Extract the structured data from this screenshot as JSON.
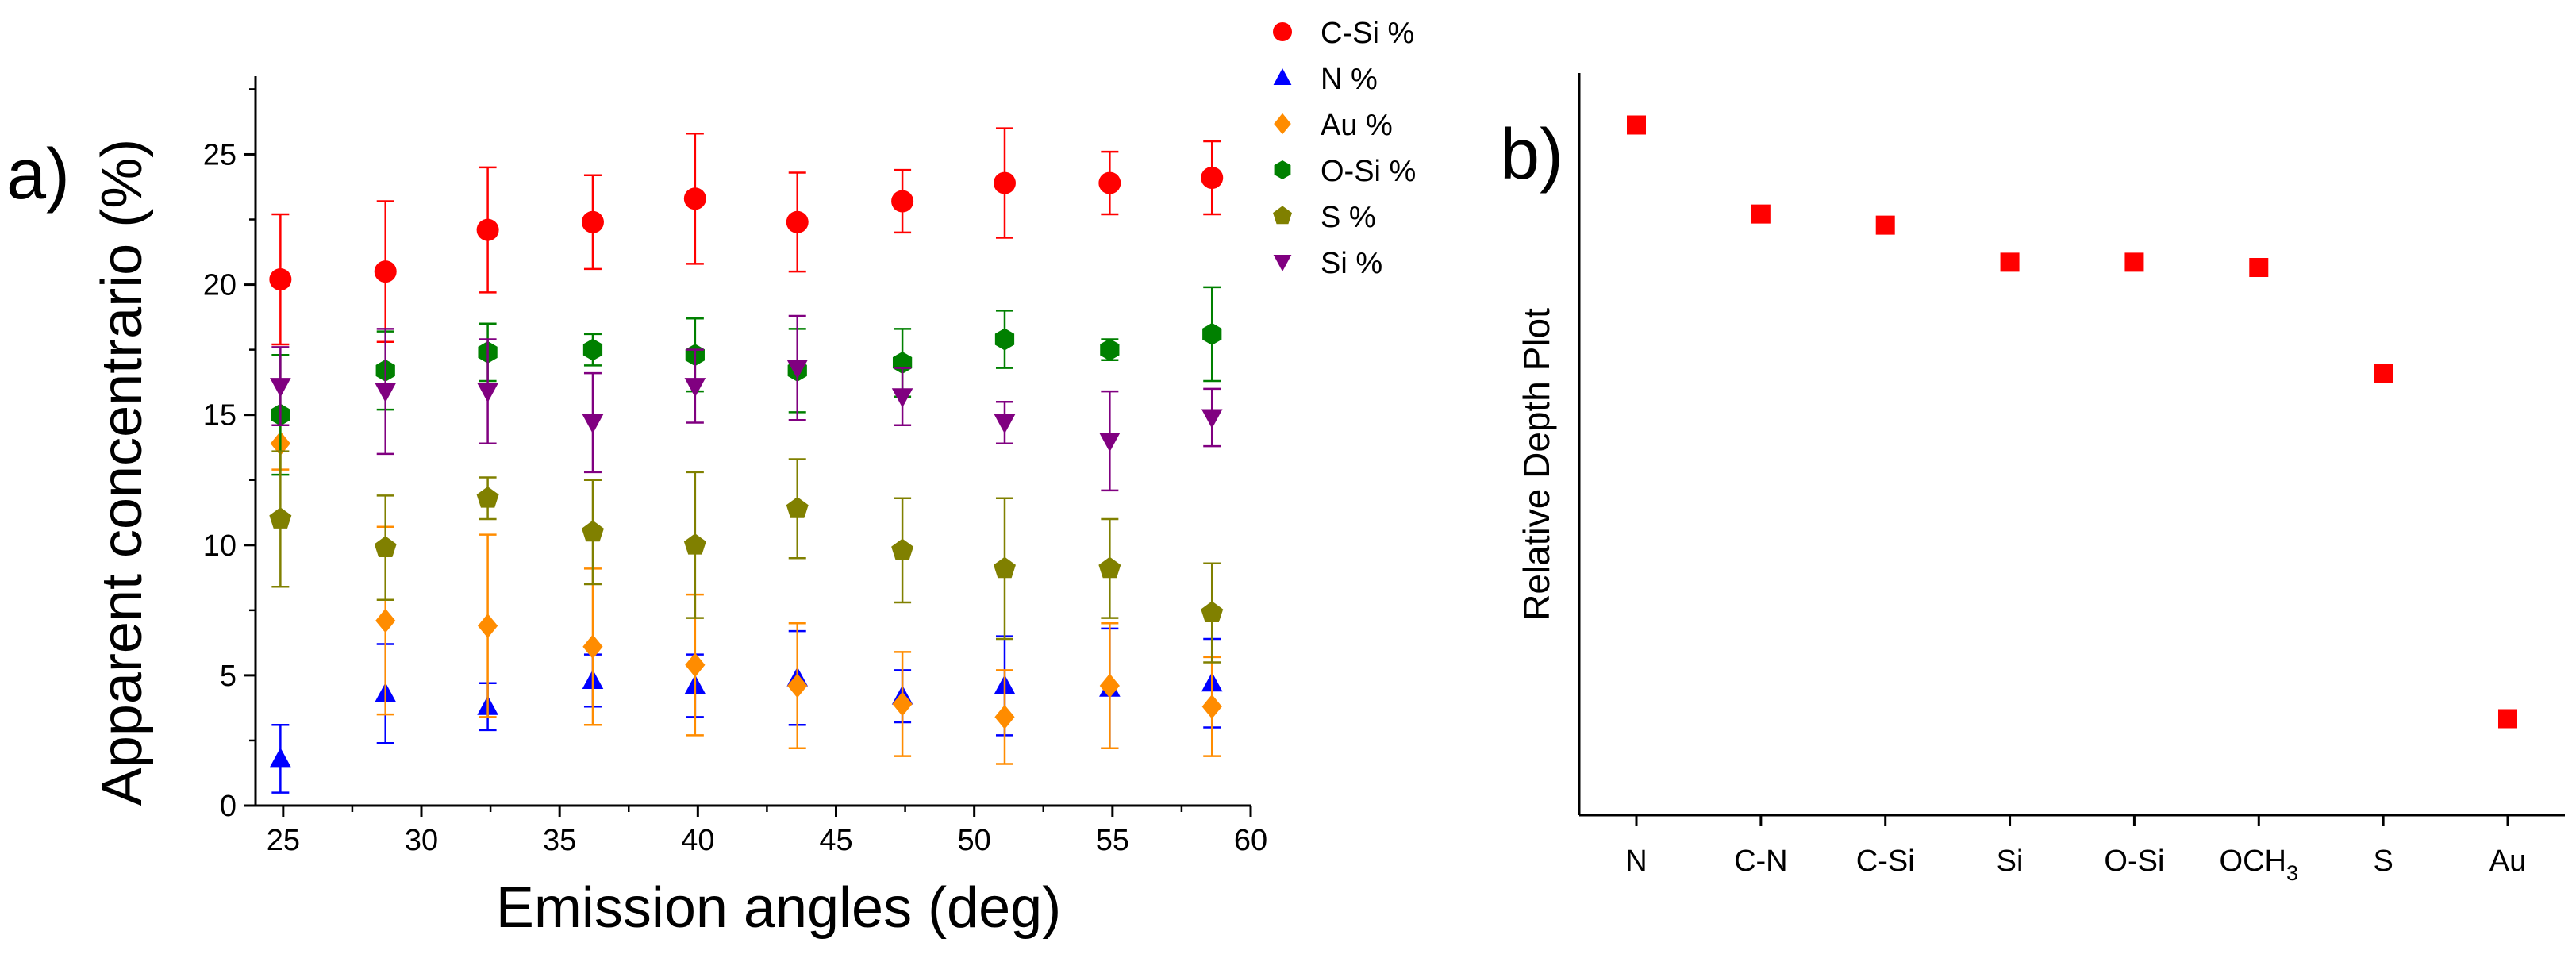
{
  "panels": {
    "a_label": "a)",
    "b_label": "b)"
  },
  "chart_data": [
    {
      "type": "scatter",
      "panel": "a",
      "xlabel": "Emission angles (deg)",
      "ylabel": "Apparent concentrario (%)",
      "xlim": [
        24,
        60
      ],
      "ylim": [
        0,
        28
      ],
      "xticks": [
        25,
        30,
        35,
        40,
        45,
        50,
        55,
        60
      ],
      "yticks": [
        0,
        5,
        10,
        15,
        20,
        25
      ],
      "grid": false,
      "legend_position": "top-right outside",
      "x": [
        24.9,
        28.7,
        32.4,
        36.2,
        39.9,
        43.6,
        47.4,
        51.1,
        54.9,
        58.6
      ],
      "series": [
        {
          "name": "C-Si %",
          "marker": "circle",
          "color": "#ff0000",
          "values": [
            20.2,
            20.5,
            22.1,
            22.4,
            23.3,
            22.4,
            23.2,
            23.9,
            23.9,
            24.1
          ],
          "errors": [
            2.5,
            2.7,
            2.4,
            1.8,
            2.5,
            1.9,
            1.2,
            2.1,
            1.2,
            1.4
          ]
        },
        {
          "name": "N %",
          "marker": "triangle-up",
          "color": "#0000ff",
          "values": [
            1.8,
            4.3,
            3.8,
            4.8,
            4.6,
            4.9,
            4.2,
            4.6,
            4.5,
            4.7
          ],
          "errors": [
            1.3,
            1.9,
            0.9,
            1.0,
            1.2,
            1.8,
            1.0,
            1.9,
            2.3,
            1.7
          ]
        },
        {
          "name": "Au %",
          "marker": "diamond",
          "color": "#ff8c00",
          "values": [
            13.9,
            7.1,
            6.9,
            6.1,
            5.4,
            4.6,
            3.9,
            3.4,
            4.6,
            3.8
          ],
          "errors": [
            1.0,
            3.6,
            3.5,
            3.0,
            2.7,
            2.4,
            2.0,
            1.8,
            2.4,
            1.9
          ]
        },
        {
          "name": "O-Si %",
          "marker": "hexagon",
          "color": "#008000",
          "values": [
            15.0,
            16.7,
            17.4,
            17.5,
            17.3,
            16.7,
            17.0,
            17.9,
            17.5,
            18.1
          ],
          "errors": [
            2.3,
            1.5,
            1.1,
            0.6,
            1.4,
            1.6,
            1.3,
            1.1,
            0.4,
            1.8
          ]
        },
        {
          "name": "S %",
          "marker": "pentagon",
          "color": "#808000",
          "values": [
            11.0,
            9.9,
            11.8,
            10.5,
            10.0,
            11.4,
            9.8,
            9.1,
            9.1,
            7.4
          ],
          "errors": [
            2.6,
            2.0,
            0.8,
            2.0,
            2.8,
            1.9,
            2.0,
            2.7,
            1.9,
            1.9
          ]
        },
        {
          "name": "Si %",
          "marker": "triangle-down",
          "color": "#800080",
          "values": [
            16.1,
            15.9,
            15.9,
            14.7,
            16.1,
            16.8,
            15.7,
            14.7,
            14.0,
            14.9
          ],
          "errors": [
            1.5,
            2.4,
            2.0,
            1.9,
            1.4,
            2.0,
            1.1,
            0.8,
            1.9,
            1.1
          ]
        }
      ]
    },
    {
      "type": "scatter",
      "panel": "b",
      "ylabel": "Relative Depth Plot",
      "categories": [
        "N",
        "C-N",
        "C-Si",
        "Si",
        "O-Si",
        "OCH3",
        "S",
        "Au"
      ],
      "values": [
        9.3,
        8.1,
        7.95,
        7.45,
        7.45,
        7.38,
        5.95,
        1.3
      ],
      "ylim": [
        0,
        10
      ],
      "yticks_shown": false,
      "grid": false,
      "marker": "square",
      "color": "#ff0000"
    }
  ]
}
